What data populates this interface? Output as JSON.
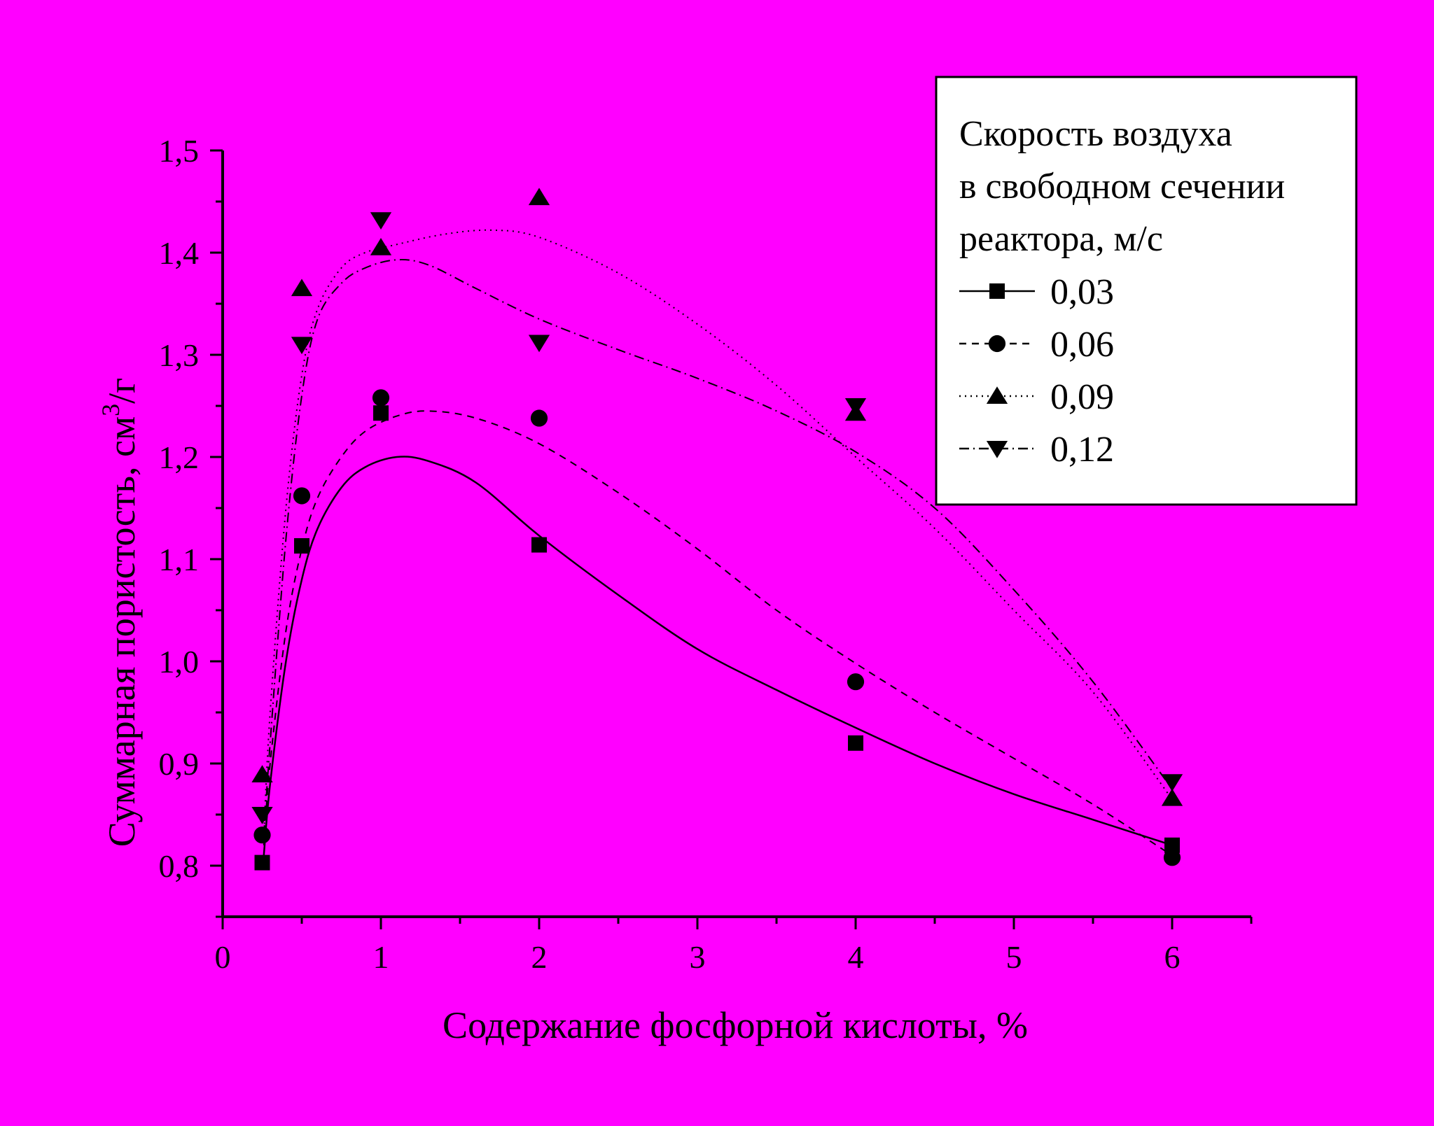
{
  "colors": {
    "background": "#ff00ff",
    "ink": "#000000",
    "legend_bg": "#ffffff"
  },
  "chart_data": {
    "type": "scatter",
    "xlabel": "Содержание фосфорной кислоты, %",
    "ylabel_main": "Суммарная пористость, см",
    "ylabel_sup": "3",
    "ylabel_tail": "/г",
    "xlim": [
      0,
      6.5
    ],
    "ylim": [
      0.75,
      1.5
    ],
    "x_ticks": [
      "0",
      "1",
      "2",
      "3",
      "4",
      "5",
      "6"
    ],
    "y_ticks": [
      "0,8",
      "0,9",
      "1,0",
      "1,1",
      "1,2",
      "1,3",
      "1,4",
      "1,5"
    ],
    "grid": false,
    "legend": {
      "placement": "top-right",
      "title_lines": [
        "Скорость воздуха",
        "в свободном сечении",
        "реактора, м/с"
      ]
    },
    "series": [
      {
        "name": "0,03",
        "marker": "square",
        "line": "solid",
        "points": [
          [
            0.25,
            0.803
          ],
          [
            0.5,
            1.113
          ],
          [
            1,
            1.243
          ],
          [
            2,
            1.114
          ],
          [
            4,
            0.92
          ],
          [
            6,
            0.82
          ]
        ],
        "fit": [
          [
            0.26,
            0.81
          ],
          [
            0.3,
            0.88
          ],
          [
            0.4,
            1.0
          ],
          [
            0.5,
            1.08
          ],
          [
            0.6,
            1.13
          ],
          [
            0.75,
            1.17
          ],
          [
            0.9,
            1.19
          ],
          [
            1.1,
            1.2
          ],
          [
            1.3,
            1.196
          ],
          [
            1.6,
            1.175
          ],
          [
            2.0,
            1.123
          ],
          [
            2.5,
            1.065
          ],
          [
            3.0,
            1.012
          ],
          [
            3.5,
            0.972
          ],
          [
            4.0,
            0.935
          ],
          [
            4.5,
            0.9
          ],
          [
            5.0,
            0.87
          ],
          [
            5.5,
            0.845
          ],
          [
            6.0,
            0.82
          ]
        ]
      },
      {
        "name": "0,06",
        "marker": "circle",
        "line": "dashed",
        "points": [
          [
            0.25,
            0.83
          ],
          [
            0.5,
            1.162
          ],
          [
            1,
            1.258
          ],
          [
            2,
            1.238
          ],
          [
            4,
            0.98
          ],
          [
            6,
            0.808
          ]
        ],
        "fit": [
          [
            0.26,
            0.82
          ],
          [
            0.3,
            0.9
          ],
          [
            0.4,
            1.03
          ],
          [
            0.5,
            1.11
          ],
          [
            0.6,
            1.16
          ],
          [
            0.75,
            1.2
          ],
          [
            0.9,
            1.225
          ],
          [
            1.1,
            1.24
          ],
          [
            1.3,
            1.245
          ],
          [
            1.6,
            1.238
          ],
          [
            2.0,
            1.213
          ],
          [
            2.5,
            1.165
          ],
          [
            3.0,
            1.11
          ],
          [
            3.5,
            1.05
          ],
          [
            4.0,
            0.998
          ],
          [
            4.5,
            0.95
          ],
          [
            5.0,
            0.905
          ],
          [
            5.5,
            0.86
          ],
          [
            6.0,
            0.81
          ]
        ]
      },
      {
        "name": "0,09",
        "marker": "triangle-up",
        "line": "dotted",
        "points": [
          [
            0.25,
            0.889
          ],
          [
            0.5,
            1.365
          ],
          [
            1,
            1.405
          ],
          [
            2,
            1.454
          ],
          [
            4,
            1.243
          ],
          [
            6,
            0.866
          ]
        ],
        "fit": [
          [
            0.26,
            0.83
          ],
          [
            0.3,
            0.95
          ],
          [
            0.4,
            1.15
          ],
          [
            0.5,
            1.28
          ],
          [
            0.6,
            1.345
          ],
          [
            0.75,
            1.385
          ],
          [
            0.9,
            1.4
          ],
          [
            1.1,
            1.408
          ],
          [
            1.4,
            1.418
          ],
          [
            1.7,
            1.422
          ],
          [
            2.0,
            1.415
          ],
          [
            2.5,
            1.38
          ],
          [
            3.0,
            1.33
          ],
          [
            3.5,
            1.27
          ],
          [
            4.0,
            1.2
          ],
          [
            4.5,
            1.13
          ],
          [
            5.0,
            1.05
          ],
          [
            5.5,
            0.97
          ],
          [
            6.0,
            0.865
          ]
        ]
      },
      {
        "name": "0,12",
        "marker": "triangle-down",
        "line": "dash-dot",
        "points": [
          [
            0.25,
            0.85
          ],
          [
            0.5,
            1.31
          ],
          [
            1,
            1.432
          ],
          [
            2,
            1.312
          ],
          [
            4,
            1.25
          ],
          [
            6,
            0.882
          ]
        ],
        "fit": [
          [
            0.26,
            0.83
          ],
          [
            0.3,
            0.92
          ],
          [
            0.4,
            1.12
          ],
          [
            0.5,
            1.26
          ],
          [
            0.6,
            1.335
          ],
          [
            0.75,
            1.37
          ],
          [
            0.9,
            1.385
          ],
          [
            1.1,
            1.393
          ],
          [
            1.3,
            1.388
          ],
          [
            1.6,
            1.365
          ],
          [
            2.0,
            1.335
          ],
          [
            2.5,
            1.305
          ],
          [
            3.0,
            1.277
          ],
          [
            3.5,
            1.245
          ],
          [
            4.0,
            1.205
          ],
          [
            4.5,
            1.15
          ],
          [
            5.0,
            1.07
          ],
          [
            5.5,
            0.98
          ],
          [
            6.0,
            0.875
          ]
        ]
      }
    ]
  }
}
